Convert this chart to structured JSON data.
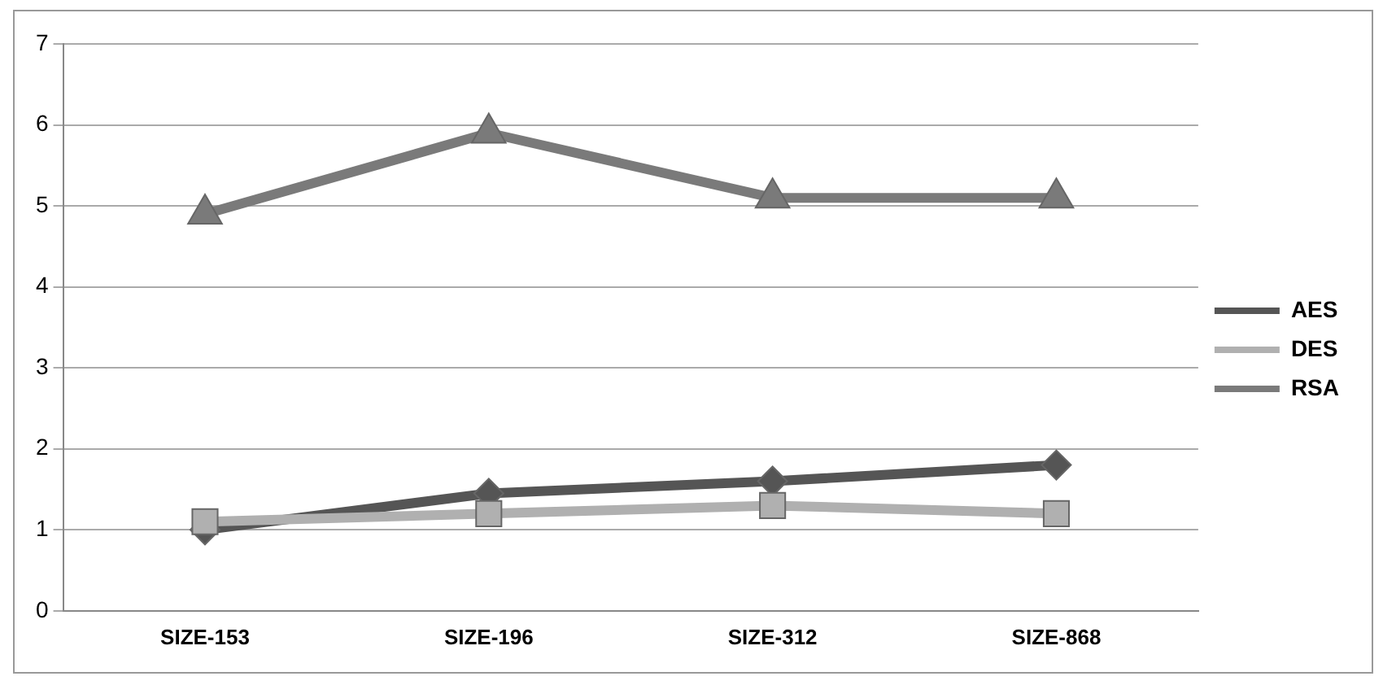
{
  "chart_data": {
    "type": "line",
    "categories": [
      "SIZE-153",
      "SIZE-196",
      "SIZE-312",
      "SIZE-868"
    ],
    "series": [
      {
        "name": "AES",
        "color": "#555555",
        "marker": "diamond",
        "values": [
          1.0,
          1.45,
          1.6,
          1.8
        ]
      },
      {
        "name": "DES",
        "color": "#b0b0b0",
        "marker": "square",
        "values": [
          1.1,
          1.2,
          1.3,
          1.2
        ]
      },
      {
        "name": "RSA",
        "color": "#7a7a7a",
        "marker": "triangle",
        "values": [
          4.9,
          5.9,
          5.1,
          5.1
        ]
      }
    ],
    "ylim": [
      0,
      7
    ],
    "yticks": [
      0,
      1,
      2,
      3,
      4,
      5,
      6,
      7
    ],
    "grid": "y",
    "legend": "right"
  }
}
